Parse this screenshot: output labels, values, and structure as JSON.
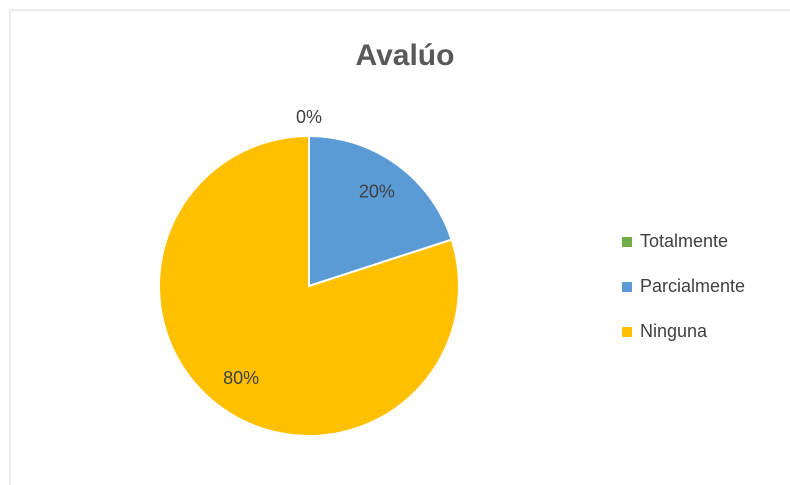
{
  "chart_data": {
    "type": "pie",
    "title": "Avalúo",
    "categories": [
      "Totalmente",
      "Parcialmente",
      "Ninguna"
    ],
    "values": [
      0,
      20,
      80
    ],
    "value_labels": [
      "0%",
      "20%",
      "80%"
    ],
    "colors": [
      "#70ad47",
      "#5b9bd5",
      "#ffc000"
    ],
    "legend": "right"
  }
}
